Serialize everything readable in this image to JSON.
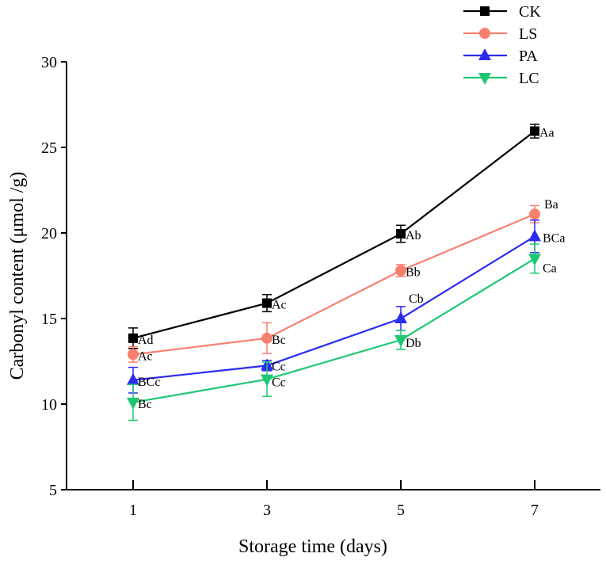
{
  "chart_data": {
    "type": "line",
    "title": "",
    "xlabel": "Storage time (days)",
    "ylabel": "Carbonyl content  (μmol /g)",
    "x": [
      1,
      3,
      5,
      7
    ],
    "xticks": [
      "1",
      "3",
      "5",
      "7"
    ],
    "ylim": [
      5,
      30
    ],
    "yticks": [
      "5",
      "10",
      "15",
      "20",
      "25",
      "30"
    ],
    "grid": false,
    "legend_position": "top-right",
    "series": [
      {
        "name": "CK",
        "color": "#000000",
        "marker": "square",
        "values": [
          13.85,
          15.9,
          19.95,
          25.95
        ],
        "errors": [
          0.6,
          0.5,
          0.5,
          0.4
        ],
        "labels": [
          "Ad",
          "Ac",
          "Ab",
          "Aa"
        ]
      },
      {
        "name": "LS",
        "color": "#f8806f",
        "marker": "circle",
        "values": [
          12.9,
          13.85,
          17.8,
          21.1
        ],
        "errors": [
          0.45,
          0.9,
          0.35,
          0.5
        ],
        "labels": [
          "Ac",
          "Bc",
          "Bb",
          "Ba"
        ]
      },
      {
        "name": "PA",
        "color": "#2b2bf2",
        "marker": "triangle-up",
        "values": [
          11.4,
          12.25,
          15.0,
          19.8
        ],
        "errors": [
          0.75,
          0.3,
          0.7,
          0.95
        ],
        "labels": [
          "BCc",
          "Cc",
          "Cb",
          "BCa"
        ]
      },
      {
        "name": "LC",
        "color": "#1ec873",
        "marker": "triangle-down",
        "values": [
          10.1,
          11.45,
          13.75,
          18.5
        ],
        "errors": [
          1.05,
          1.0,
          0.55,
          0.85
        ],
        "labels": [
          "Bc",
          "Cc",
          "Db",
          "Ca"
        ]
      }
    ]
  }
}
